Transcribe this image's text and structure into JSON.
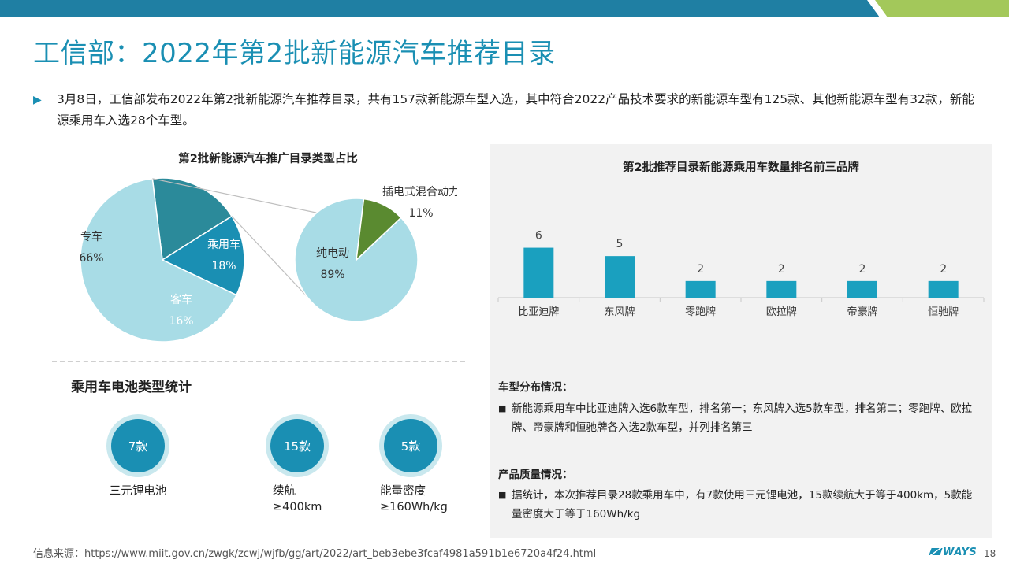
{
  "header": {
    "title": "工信部：2022年第2批新能源汽车推荐目录",
    "colors": {
      "bar_blue": "#1f7fa3",
      "bar_green": "#a3c85a"
    }
  },
  "intro": {
    "text": "3月8日，工信部发布2022年第2批新能源汽车推荐目录，共有157款新能源车型入选，其中符合2022产品技术要求的新能源车型有125款、其他新能源车型有32款，新能源乘用车入选28个车型。"
  },
  "chart_data": [
    {
      "type": "pie",
      "title": "第2批新能源汽车推广目录类型占比",
      "labels": [
        "专车",
        "乘用车",
        "客车"
      ],
      "values": [
        66,
        18,
        16
      ],
      "value_labels": [
        "66%",
        "18%",
        "16%"
      ],
      "colors": [
        "#a8dce6",
        "#2b8a9a",
        "#1a8fb3"
      ],
      "legend": "none"
    },
    {
      "type": "pie",
      "title": "",
      "labels": [
        "纯电动",
        "插电式混合动力"
      ],
      "values": [
        89,
        11
      ],
      "value_labels": [
        "89%",
        "11%"
      ],
      "colors": [
        "#a8dce6",
        "#5a8a30"
      ],
      "legend": "none"
    },
    {
      "type": "bar",
      "title": "第2批推荐目录新能源乘用车数量排名前三品牌",
      "categories": [
        "比亚迪牌",
        "东风牌",
        "零跑牌",
        "欧拉牌",
        "帝豪牌",
        "恒驰牌"
      ],
      "values": [
        6,
        5,
        2,
        2,
        2,
        2
      ],
      "color": "#1aa0bf",
      "ylim": [
        0,
        7
      ],
      "grid": false,
      "legend": "none"
    }
  ],
  "battery": {
    "title": "乘用车电池类型统计",
    "items": [
      {
        "value": "7款",
        "label_line1": "三元锂电池",
        "label_line2": ""
      },
      {
        "value": "15款",
        "label_line1": "续航",
        "label_line2": "≥400km"
      },
      {
        "value": "5款",
        "label_line1": "能量密度",
        "label_line2": "≥160Wh/kg"
      }
    ]
  },
  "panel": {
    "sec1_title": "车型分布情况：",
    "sec1_text": "新能源乘用车中比亚迪牌入选6款车型，排名第一；东风牌入选5款车型，排名第二；零跑牌、欧拉牌、帝豪牌和恒驰牌各入选2款车型，并列排名第三",
    "sec2_title": "产品质量情况：",
    "sec2_text": "据统计，本次推荐目录28款乘用车中，有7款使用三元锂电池，15款续航大于等于400km，5款能量密度大于等于160Wh/kg",
    "bullet_glyph": "■"
  },
  "footer": {
    "source": "信息来源：https://www.miit.gov.cn/zwgk/zcwj/wjfb/gg/art/2022/art_beb3ebe3fcaf4981a591b1e6720a4f24.html",
    "logo": "WAYS",
    "page": "18"
  }
}
